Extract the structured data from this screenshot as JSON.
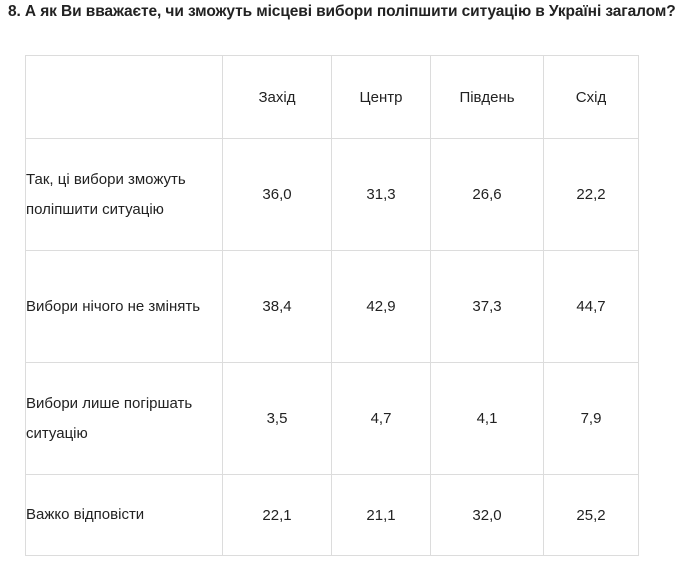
{
  "question": {
    "title": "8. А як Ви вважаєте, чи зможуть місцеві вибори поліпшити ситуацію в Україні загалом?"
  },
  "table": {
    "columns": [
      "Захід",
      "Центр",
      "Південь",
      "Схід"
    ],
    "rows": [
      {
        "label": "Так, ці вибори зможуть поліпшити ситуацію",
        "values": [
          "36,0",
          "31,3",
          "26,6",
          "22,2"
        ]
      },
      {
        "label": "Вибори нічого не змінять",
        "values": [
          "38,4",
          "42,9",
          "37,3",
          "44,7"
        ]
      },
      {
        "label": "Вибори лише погіршать ситуацію",
        "values": [
          "3,5",
          "4,7",
          "4,1",
          "7,9"
        ]
      },
      {
        "label": "Важко відповісти",
        "values": [
          "22,1",
          "21,1",
          "32,0",
          "25,2"
        ]
      }
    ]
  }
}
